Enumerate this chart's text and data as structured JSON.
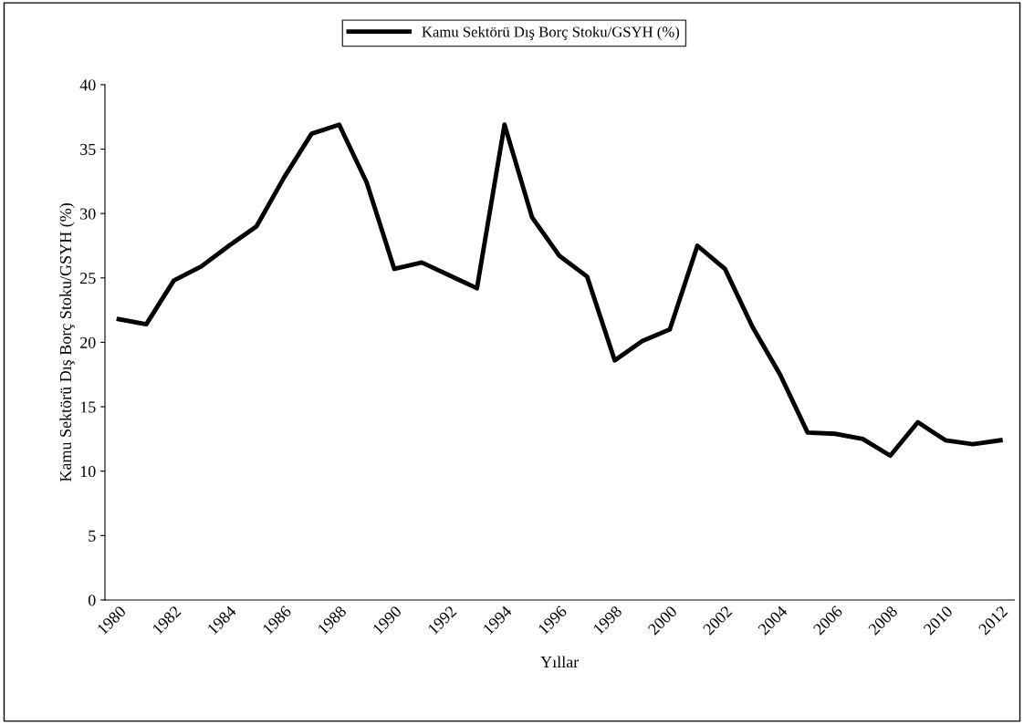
{
  "chart_data": {
    "type": "line",
    "xlabel": "Yıllar",
    "ylabel": "Kamu Sektörü Dış Borç Stoku/GSYH (%)",
    "categories": [
      "1980",
      null,
      "1982",
      null,
      "1984",
      null,
      "1986",
      null,
      "1988",
      null,
      "1990",
      null,
      "1992",
      null,
      "1994",
      null,
      "1996",
      null,
      "1998",
      null,
      "2000",
      null,
      "2002",
      null,
      "2004",
      null,
      "2006",
      null,
      "2008",
      null,
      "2010",
      null,
      "2012"
    ],
    "series": [
      {
        "name": "Kamu Sektörü Dış Borç Stoku/GSYH (%)",
        "color": "#000000",
        "values": [
          21.8,
          21.4,
          24.8,
          25.9,
          27.5,
          29.0,
          32.8,
          36.2,
          36.9,
          32.4,
          25.7,
          26.2,
          25.2,
          24.2,
          36.9,
          29.7,
          26.7,
          25.1,
          18.6,
          20.1,
          21.0,
          27.5,
          25.7,
          21.2,
          17.5,
          13.0,
          12.9,
          12.5,
          11.2,
          13.8,
          12.4,
          12.1,
          12.4
        ]
      }
    ],
    "ylim": [
      0,
      40
    ],
    "yticks": [
      0,
      5,
      10,
      15,
      20,
      25,
      30,
      35,
      40
    ],
    "grid": false,
    "legend": "top",
    "marker": "none",
    "line_style": "solid"
  }
}
